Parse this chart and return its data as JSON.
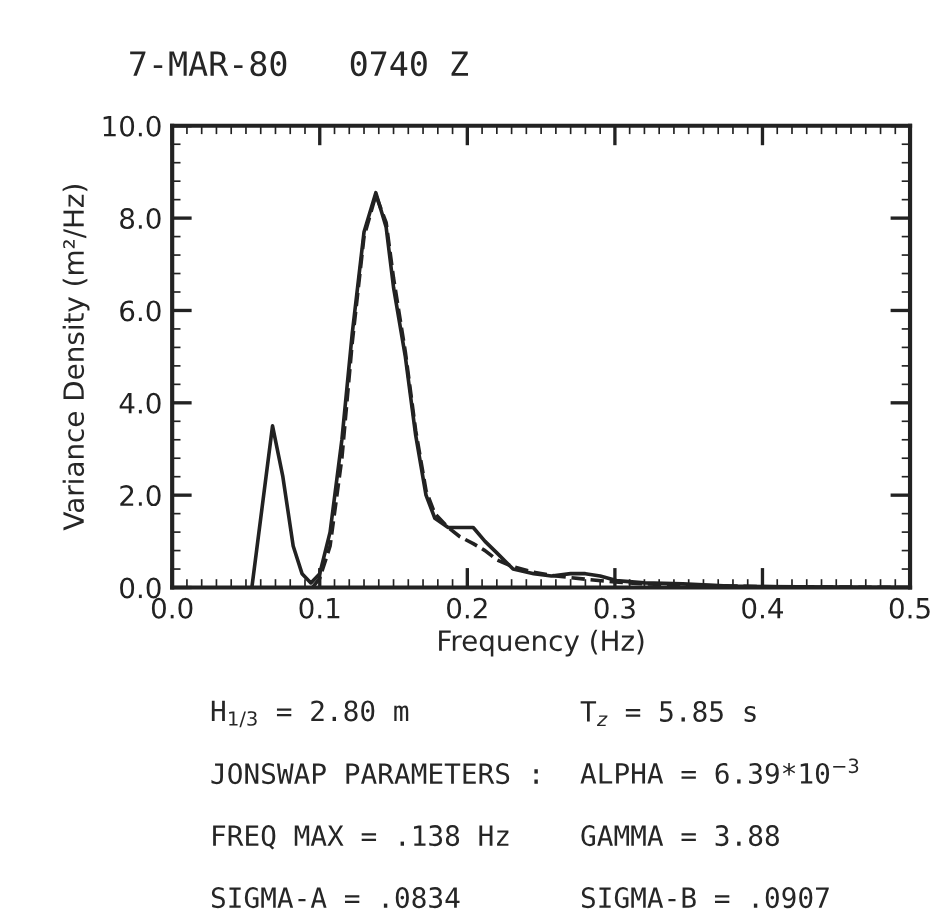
{
  "chart_data": {
    "type": "line",
    "title": "7-MAR-80   0740 Z",
    "xlabel": "Frequency (Hz)",
    "ylabel": "Variance Density (m²/Hz)",
    "series": [
      {
        "color": "#222222",
        "line_style": "solid",
        "x": [
          0.054,
          0.06,
          0.068,
          0.075,
          0.082,
          0.088,
          0.094,
          0.1,
          0.107,
          0.115,
          0.122,
          0.13,
          0.138,
          0.145,
          0.15,
          0.158,
          0.165,
          0.172,
          0.178,
          0.187,
          0.195,
          0.204,
          0.212,
          0.22,
          0.231,
          0.245,
          0.257,
          0.27,
          0.28,
          0.29,
          0.301,
          0.32,
          0.346,
          0.377,
          0.4,
          0.45,
          0.5
        ],
        "values": [
          0,
          1.5,
          3.5,
          2.4,
          0.9,
          0.3,
          0.1,
          0.3,
          1.2,
          3.2,
          5.5,
          7.7,
          8.55,
          7.8,
          6.5,
          5.0,
          3.3,
          2.0,
          1.5,
          1.3,
          1.3,
          1.3,
          1.0,
          0.75,
          0.4,
          0.3,
          0.25,
          0.3,
          0.3,
          0.25,
          0.15,
          0.1,
          0.08,
          0.03,
          0.02,
          0.01,
          0
        ]
      },
      {
        "color": "#222222",
        "line_style": "dashed",
        "x": [
          0.095,
          0.1,
          0.107,
          0.115,
          0.122,
          0.13,
          0.138,
          0.145,
          0.15,
          0.158,
          0.165,
          0.172,
          0.178,
          0.187,
          0.195,
          0.204,
          0.212,
          0.22,
          0.231,
          0.245,
          0.26,
          0.28,
          0.3,
          0.32,
          0.35,
          0.4,
          0.45,
          0.5
        ],
        "values": [
          0,
          0.2,
          0.9,
          2.8,
          5.3,
          7.6,
          8.5,
          7.9,
          6.7,
          5.1,
          3.4,
          2.1,
          1.6,
          1.3,
          1.1,
          0.95,
          0.8,
          0.6,
          0.45,
          0.33,
          0.25,
          0.18,
          0.12,
          0.08,
          0.05,
          0.02,
          0.01,
          0
        ]
      }
    ],
    "xlim": [
      0,
      0.5
    ],
    "xticks": [
      {
        "value": 0,
        "label": "0.0"
      },
      0.1,
      0.2,
      0.3,
      0.4,
      0.5
    ],
    "ylim": [
      0,
      10
    ],
    "yticks": [
      {
        "value": 0,
        "label": "0.0"
      },
      {
        "value": 2,
        "label": "2.0"
      },
      {
        "value": 4,
        "label": "4.0"
      },
      {
        "value": 6,
        "label": "6.0"
      },
      {
        "value": 8,
        "label": "8.0"
      },
      {
        "value": 10,
        "label": "10.0"
      }
    ],
    "grid": false,
    "legend": false,
    "annotations": [
      "H$_{1/3}$ = 2.80 m",
      "T$_{z}$ = 5.85 s",
      "JONSWAP PARAMETERS :",
      "ALPHA = 6.39*10$^{−3}$",
      "FREQ MAX = .138 Hz",
      "GAMMA = 3.88",
      "SIGMA-A = .0834",
      "SIGMA-B = .0907"
    ]
  }
}
